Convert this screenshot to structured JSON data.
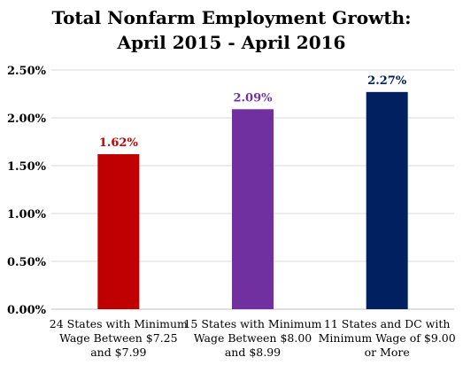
{
  "chart_data": {
    "type": "bar",
    "title": [
      "Total Nonfarm Employment Growth:",
      "April 2015 - April 2016"
    ],
    "categories": [
      [
        "24 States with Minimum",
        "Wage Between $7.25",
        "and $7.99"
      ],
      [
        "15 States with Minimum",
        "Wage Between $8.00",
        "and $8.99"
      ],
      [
        "11 States and DC with",
        "Minimum Wage of $9.00",
        "or More"
      ]
    ],
    "values": [
      1.62,
      2.09,
      2.27
    ],
    "data_labels": [
      "1.62%",
      "2.09%",
      "2.27%"
    ],
    "bar_colors": [
      "#c00000",
      "#7030a0",
      "#002060"
    ],
    "ylim": [
      0,
      2.5
    ],
    "yticks": [
      0,
      0.5,
      1.0,
      1.5,
      2.0,
      2.5
    ],
    "ytick_labels": [
      "0.00%",
      "0.50%",
      "1.00%",
      "1.50%",
      "2.00%",
      "2.50%"
    ],
    "grid": "horizontal",
    "legend": "none",
    "xlabel": "",
    "ylabel": ""
  }
}
